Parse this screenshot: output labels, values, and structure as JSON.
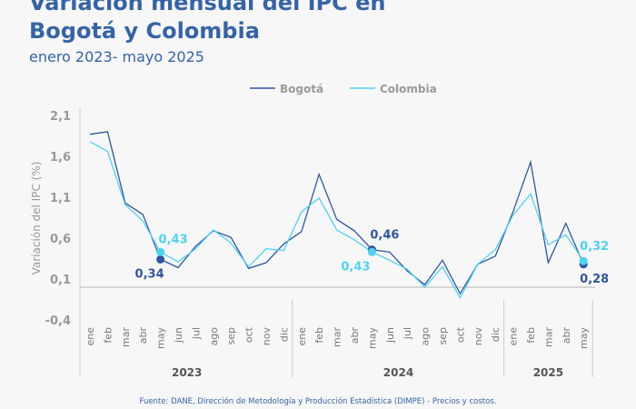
{
  "title_line1": "Variación mensual del IPC en",
  "title_line2": "Bogotá y Colombia",
  "subtitle": "enero 2023- mayo 2025",
  "source": "Fuente: DANE, Dirección de Metodología y Producción Estadística (DIMPE) - Precios y costos.",
  "chart_data": {
    "type": "line",
    "ylabel": "Variación del IPC (%)",
    "ylim": [
      -0.4,
      2.1
    ],
    "yticks": [
      "2,1",
      "1,6",
      "1,1",
      "0,6",
      "0,1",
      "-0,4"
    ],
    "ytick_values": [
      2.1,
      1.6,
      1.1,
      0.6,
      0.1,
      -0.4
    ],
    "legend_position": "top",
    "categories": [
      "ene",
      "feb",
      "mar",
      "abr",
      "may",
      "jun",
      "jul",
      "ago",
      "sep",
      "oct",
      "nov",
      "dic",
      "ene",
      "feb",
      "mar",
      "abr",
      "may",
      "jun",
      "jul",
      "ago",
      "sep",
      "oct",
      "nov",
      "dic",
      "ene",
      "feb",
      "mar",
      "abr",
      "may"
    ],
    "years": [
      {
        "label": "2023",
        "start": 0,
        "end": 11
      },
      {
        "label": "2024",
        "start": 12,
        "end": 23
      },
      {
        "label": "2025",
        "start": 24,
        "end": 28
      }
    ],
    "series": [
      {
        "name": "Bogotá",
        "color": "#2f56a0",
        "values": [
          1.87,
          1.9,
          1.03,
          0.89,
          0.34,
          0.24,
          0.5,
          0.69,
          0.61,
          0.23,
          0.3,
          0.53,
          0.68,
          1.38,
          0.83,
          0.69,
          0.46,
          0.43,
          0.2,
          0.03,
          0.33,
          -0.08,
          0.28,
          0.38,
          0.92,
          1.53,
          0.3,
          0.78,
          0.28
        ]
      },
      {
        "name": "Colombia",
        "color": "#4fd2f5",
        "values": [
          1.78,
          1.66,
          1.01,
          0.81,
          0.43,
          0.31,
          0.47,
          0.7,
          0.54,
          0.25,
          0.47,
          0.45,
          0.92,
          1.09,
          0.7,
          0.58,
          0.43,
          0.33,
          0.22,
          0.0,
          0.25,
          -0.13,
          0.28,
          0.46,
          0.88,
          1.14,
          0.52,
          0.64,
          0.32
        ]
      }
    ],
    "annotations": [
      {
        "series": "Bogotá",
        "index": 4,
        "label": "0,34"
      },
      {
        "series": "Colombia",
        "index": 4,
        "label": "0,43"
      },
      {
        "series": "Bogotá",
        "index": 16,
        "label": "0,46"
      },
      {
        "series": "Colombia",
        "index": 16,
        "label": "0,43"
      },
      {
        "series": "Bogotá",
        "index": 28,
        "label": "0,28"
      },
      {
        "series": "Colombia",
        "index": 28,
        "label": "0,32"
      }
    ]
  }
}
